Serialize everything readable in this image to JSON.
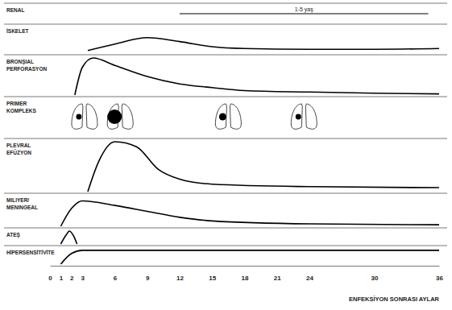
{
  "chart_data": {
    "type": "line",
    "xlabel": "ENFEKSİYON SONRASI AYLAR",
    "xlim": [
      0,
      36
    ],
    "xticks": [
      0,
      1,
      2,
      3,
      6,
      9,
      12,
      15,
      18,
      21,
      24,
      30,
      36
    ],
    "ylim": [
      0,
      100
    ],
    "tick_labels": "x",
    "color": "#000000",
    "annotations": [
      "1-5 yaş"
    ],
    "series": [
      {
        "name": "RENAL",
        "x": [
          12,
          35
        ],
        "values": [
          55,
          55
        ]
      },
      {
        "name": "İSKELET",
        "x": [
          3.5,
          6,
          9,
          12,
          15,
          18,
          24,
          30,
          36
        ],
        "values": [
          10,
          35,
          60,
          45,
          25,
          18,
          15,
          15,
          18
        ]
      },
      {
        "name": "BRONŞIAL\nPERFORASYON",
        "x": [
          2.3,
          3,
          4,
          6,
          9,
          12,
          15,
          18,
          24,
          30,
          36
        ],
        "values": [
          0,
          75,
          100,
          80,
          50,
          30,
          20,
          12,
          8,
          5,
          3
        ]
      },
      {
        "name": "PRIMER\nKOMPLEKS",
        "type": "icon",
        "x": [
          3.2,
          6.5,
          16.5,
          23.5
        ],
        "values": [
          15,
          100,
          25,
          15
        ]
      },
      {
        "name": "PLEVRAL\nEFÜZYON",
        "x": [
          3.5,
          4.5,
          6,
          8,
          10,
          12,
          15,
          24,
          36
        ],
        "values": [
          0,
          60,
          100,
          90,
          45,
          25,
          15,
          10,
          8
        ]
      },
      {
        "name": "MILIYER/\nMENINGEAL",
        "x": [
          1,
          2,
          3,
          6,
          9,
          12,
          15,
          24,
          36
        ],
        "values": [
          0,
          60,
          85,
          70,
          50,
          30,
          18,
          8,
          5
        ]
      },
      {
        "name": "ATEŞ",
        "x": [
          1,
          1.5,
          1.8,
          2.2,
          2.5
        ],
        "values": [
          0,
          70,
          100,
          60,
          0
        ]
      },
      {
        "name": "HİPERSENSİTİVİTE",
        "x": [
          1,
          2,
          3,
          36
        ],
        "values": [
          0,
          70,
          90,
          90
        ]
      }
    ]
  }
}
